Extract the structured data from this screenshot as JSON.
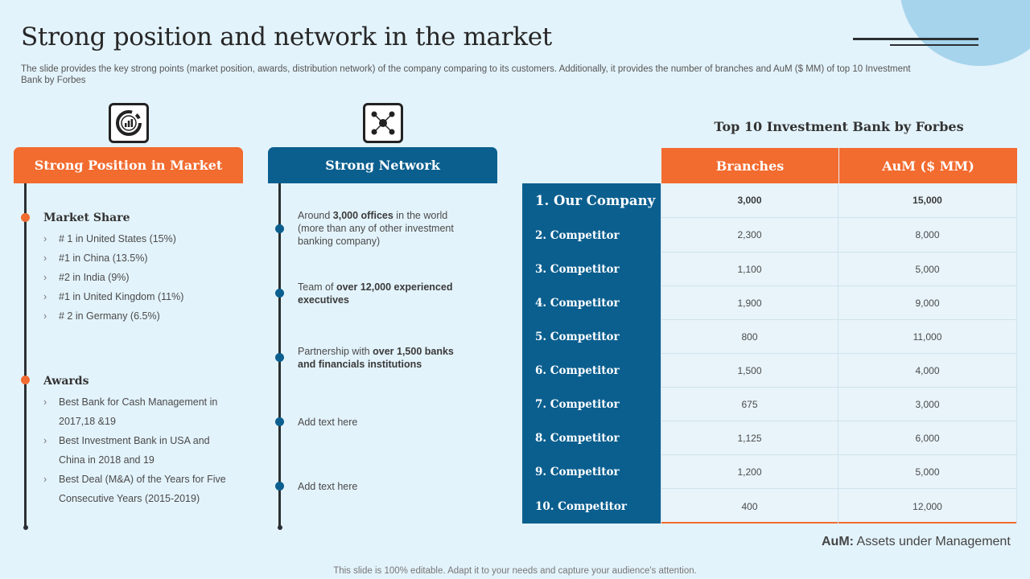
{
  "slide": {
    "title": "Strong position and network in the market",
    "subtitle": "The slide provides the key strong points (market position, awards, distribution network) of the company comparing to its customers. Additionally, it provides the number of branches and AuM ($ MM)  of top 10 Investment Bank by Forbes",
    "footer": "This slide is 100% editable. Adapt it to your needs and capture your audience's attention."
  },
  "icons": {
    "position": "chart-gauge-icon",
    "network": "network-icon"
  },
  "colors": {
    "orange": "#f26b2f",
    "blue": "#0b5f8f",
    "background": "#e3f3fb"
  },
  "position": {
    "header": "Strong Position in Market",
    "market_share": {
      "heading": "Market Share",
      "items": [
        "# 1 in United States (15%)",
        "#1 in China  (13.5%)",
        "#2 in India  (9%)",
        "#1 in United Kingdom (11%)",
        "# 2 in Germany (6.5%)"
      ]
    },
    "awards": {
      "heading": "Awards",
      "items": [
        "Best Bank for Cash Management  in 2017,18 &19",
        "Best Investment  Bank in USA and China in 2018 and 19",
        "Best Deal (M&A) of the Years for Five Consecutive  Years (2015-2019)"
      ]
    }
  },
  "network": {
    "header": "Strong Network",
    "items": [
      {
        "pre": "Around ",
        "bold": "3,000 offices",
        "post": " in the world (more than any of other investment banking company)"
      },
      {
        "pre": "Team  of ",
        "bold": "over 12,000 experienced executives",
        "post": ""
      },
      {
        "pre": "Partnership with ",
        "bold": "over 1,500 banks and financials institutions",
        "post": ""
      },
      {
        "pre": "Add text here",
        "bold": "",
        "post": ""
      },
      {
        "pre": "Add text here",
        "bold": "",
        "post": ""
      }
    ]
  },
  "table": {
    "title": "Top 10 Investment Bank by Forbes",
    "columns": [
      "Branches",
      "AuM ($ MM)"
    ],
    "rows": [
      {
        "name": "1. Our Company",
        "branches": "3,000",
        "aum": "15,000"
      },
      {
        "name": "2. Competitor",
        "branches": "2,300",
        "aum": "8,000"
      },
      {
        "name": "3. Competitor",
        "branches": "1,100",
        "aum": "5,000"
      },
      {
        "name": "4. Competitor",
        "branches": "1,900",
        "aum": "9,000"
      },
      {
        "name": "5. Competitor",
        "branches": "800",
        "aum": "11,000"
      },
      {
        "name": "6. Competitor",
        "branches": "1,500",
        "aum": "4,000"
      },
      {
        "name": "7. Competitor",
        "branches": "675",
        "aum": "3,000"
      },
      {
        "name": "8. Competitor",
        "branches": "1,125",
        "aum": "6,000"
      },
      {
        "name": "9. Competitor",
        "branches": "1,200",
        "aum": "5,000"
      },
      {
        "name": "10. Competitor",
        "branches": "400",
        "aum": "12,000"
      }
    ],
    "note_bold": "AuM:",
    "note_text": " Assets under Management"
  }
}
